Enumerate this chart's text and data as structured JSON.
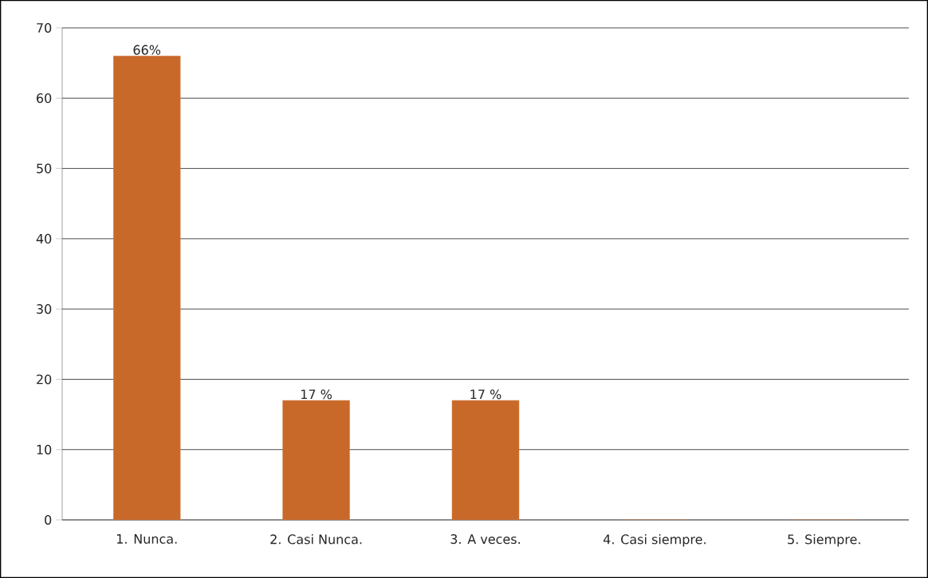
{
  "chart_data": {
    "type": "bar",
    "categories": [
      "1. Nunca.",
      "2. Casi Nunca.",
      "3. A veces.",
      "4. Casi siempre.",
      "5. Siempre."
    ],
    "values": [
      66,
      17,
      17,
      0,
      0
    ],
    "value_labels": [
      "66%",
      "17 %",
      "17 %",
      null,
      null
    ],
    "color": "#c8692a",
    "ylim": [
      0,
      70
    ],
    "yticks": [
      0,
      10,
      20,
      30,
      40,
      50,
      60,
      70
    ],
    "grid": "y"
  }
}
